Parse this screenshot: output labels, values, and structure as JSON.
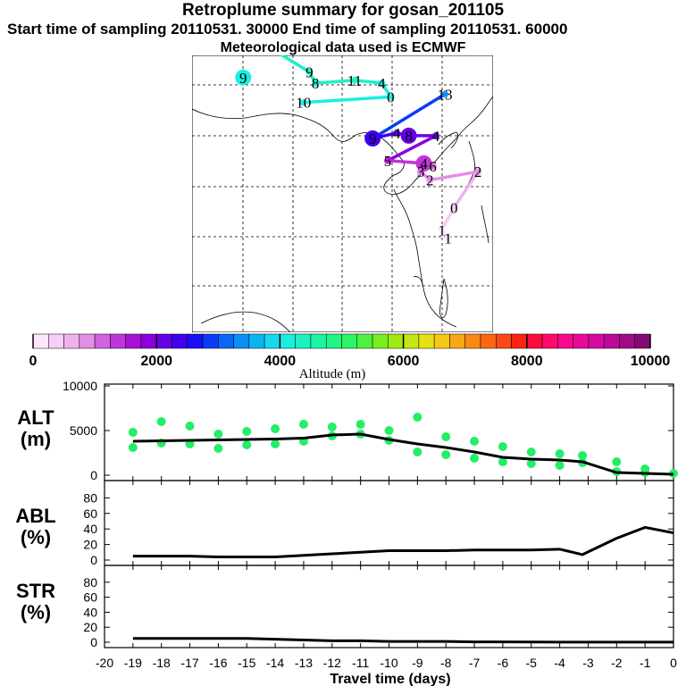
{
  "header": {
    "title": "Retroplume summary for gosan_201105",
    "subtitle": "Start time of sampling 20110531. 30000     End time of sampling 20110531. 60000",
    "met_note": "Meteorological data used is ECMWF"
  },
  "colorbar": {
    "tick_labels": [
      "0",
      "2000",
      "4000",
      "6000",
      "8000",
      "10000"
    ],
    "label": "Altitude (m)",
    "range": [
      0,
      10000
    ],
    "colors": [
      "#fde6fb",
      "#f8cdf6",
      "#f0b0ee",
      "#e38ee6",
      "#d163dd",
      "#bf36d8",
      "#a811d6",
      "#8b00dd",
      "#6600e6",
      "#4000ef",
      "#1a10f4",
      "#0a3cf7",
      "#0a66f6",
      "#0a8ff4",
      "#0ab4f2",
      "#14d8ef",
      "#1aeee1",
      "#1af2c4",
      "#1af4a4",
      "#20f585",
      "#2cf466",
      "#4cf240",
      "#78ee1e",
      "#a0ea14",
      "#c6e614",
      "#e6e014",
      "#f5c814",
      "#f8a814",
      "#f98814",
      "#fa6814",
      "#fb4814",
      "#fc2410",
      "#ff0a3c",
      "#ff0a6e",
      "#f70a8c",
      "#e90a98",
      "#d40aa0",
      "#bb0a98",
      "#a00a88",
      "#820a76"
    ]
  },
  "map_labels": [
    {
      "text": "9",
      "alt": 4100,
      "lon_frac": 0.17,
      "lat_frac": 0.08,
      "big": true
    },
    {
      "text": "9",
      "alt": 4300,
      "lon_frac": 0.39,
      "lat_frac": 0.06
    },
    {
      "text": "8",
      "alt": 4300,
      "lon_frac": 0.41,
      "lat_frac": 0.1
    },
    {
      "text": "11",
      "alt": 4400,
      "lon_frac": 0.54,
      "lat_frac": 0.09
    },
    {
      "text": "4",
      "alt": 4200,
      "lon_frac": 0.63,
      "lat_frac": 0.1
    },
    {
      "text": "0",
      "alt": 4200,
      "lon_frac": 0.66,
      "lat_frac": 0.15
    },
    {
      "text": "10",
      "alt": 4000,
      "lon_frac": 0.37,
      "lat_frac": 0.17
    },
    {
      "text": "13",
      "alt": 3300,
      "lon_frac": 0.84,
      "lat_frac": 0.14
    },
    {
      "text": "9",
      "alt": 2400,
      "lon_frac": 0.6,
      "lat_frac": 0.3,
      "big": true
    },
    {
      "text": "4",
      "alt": 2200,
      "lon_frac": 0.68,
      "lat_frac": 0.28
    },
    {
      "text": "8",
      "alt": 2200,
      "lon_frac": 0.72,
      "lat_frac": 0.29,
      "big": true
    },
    {
      "text": "4",
      "alt": 2000,
      "lon_frac": 0.81,
      "lat_frac": 0.29
    },
    {
      "text": "5",
      "alt": 1500,
      "lon_frac": 0.65,
      "lat_frac": 0.38
    },
    {
      "text": "4",
      "alt": 1300,
      "lon_frac": 0.77,
      "lat_frac": 0.39,
      "big": true
    },
    {
      "text": "6",
      "alt": 1200,
      "lon_frac": 0.8,
      "lat_frac": 0.4
    },
    {
      "text": "3",
      "alt": 1000,
      "lon_frac": 0.76,
      "lat_frac": 0.42
    },
    {
      "text": "2",
      "alt": 900,
      "lon_frac": 0.79,
      "lat_frac": 0.45
    },
    {
      "text": "2",
      "alt": 900,
      "lon_frac": 0.95,
      "lat_frac": 0.42
    },
    {
      "text": "0",
      "alt": 300,
      "lon_frac": 0.87,
      "lat_frac": 0.55
    },
    {
      "text": "1",
      "alt": 200,
      "lon_frac": 0.83,
      "lat_frac": 0.63
    },
    {
      "text": "1",
      "alt": 200,
      "lon_frac": 0.85,
      "lat_frac": 0.66
    }
  ],
  "panels": {
    "alt": {
      "label_line1": "ALT",
      "label_line2": "(m)",
      "ymin": 0,
      "ymax": 10000,
      "y_ticks": [
        "10000",
        "5000",
        "0"
      ]
    },
    "abl": {
      "label_line1": "ABL",
      "label_line2": "(%)",
      "ymin": 0,
      "ymax": 100,
      "y_ticks": [
        "80",
        "60",
        "40",
        "20",
        "0"
      ]
    },
    "str": {
      "label_line1": "STR",
      "label_line2": "(%)",
      "ymin": 0,
      "ymax": 100,
      "y_ticks": [
        "80",
        "60",
        "40",
        "20",
        "0"
      ]
    }
  },
  "x_axis": {
    "label": "Travel time (days)",
    "range": [
      -20,
      0
    ],
    "tick_labels": [
      "-20",
      "-19",
      "-18",
      "-17",
      "-16",
      "-15",
      "-14",
      "-13",
      "-12",
      "-11",
      "-10",
      "-9",
      "-8",
      "-7",
      "-6",
      "-5",
      "-4",
      "-3",
      "-2",
      "-1",
      "0"
    ]
  },
  "chart_data": {
    "type": "line",
    "title": "Retroplume summary for gosan_201105",
    "xlabel": "Travel time (days)",
    "x": [
      -19,
      -18,
      -17,
      -16,
      -15,
      -14,
      -13,
      -12,
      -11,
      -10,
      -9,
      -8,
      -7,
      -6,
      -5,
      -4,
      -3.2,
      -2,
      -1,
      0
    ],
    "series": [
      {
        "name": "ALT (m)",
        "ylim": [
          0,
          10000
        ],
        "values": [
          3800,
          3850,
          3900,
          3950,
          4000,
          4050,
          4150,
          4500,
          4600,
          4000,
          3500,
          3100,
          2600,
          2000,
          1800,
          1700,
          1500,
          300,
          200,
          100
        ]
      },
      {
        "name": "ABL (%)",
        "ylim": [
          0,
          100
        ],
        "values": [
          5,
          5,
          5,
          4,
          4,
          4,
          6,
          8,
          10,
          12,
          12,
          12,
          13,
          13,
          13,
          14,
          7,
          28,
          42,
          35
        ]
      },
      {
        "name": "STR (%)",
        "ylim": [
          0,
          100
        ],
        "values": [
          5,
          5,
          5,
          5,
          5,
          4,
          3,
          2,
          2,
          1,
          1,
          1,
          0.5,
          0.5,
          0.3,
          0.2,
          0.2,
          0.1,
          0.1,
          0.1
        ]
      }
    ],
    "alt_scatter": [
      {
        "x": -19,
        "y": 3100
      },
      {
        "x": -19,
        "y": 4800
      },
      {
        "x": -18,
        "y": 3600
      },
      {
        "x": -18,
        "y": 6000
      },
      {
        "x": -17,
        "y": 3500
      },
      {
        "x": -17,
        "y": 5500
      },
      {
        "x": -16,
        "y": 3000
      },
      {
        "x": -16,
        "y": 4600
      },
      {
        "x": -15,
        "y": 3400
      },
      {
        "x": -15,
        "y": 4900
      },
      {
        "x": -14,
        "y": 3500
      },
      {
        "x": -14,
        "y": 5200
      },
      {
        "x": -13,
        "y": 3800
      },
      {
        "x": -13,
        "y": 5700
      },
      {
        "x": -12,
        "y": 4400
      },
      {
        "x": -12,
        "y": 5400
      },
      {
        "x": -11,
        "y": 4600
      },
      {
        "x": -11,
        "y": 5700
      },
      {
        "x": -10,
        "y": 3900
      },
      {
        "x": -10,
        "y": 5000
      },
      {
        "x": -9,
        "y": 2600
      },
      {
        "x": -9,
        "y": 6500
      },
      {
        "x": -8,
        "y": 2300
      },
      {
        "x": -8,
        "y": 4300
      },
      {
        "x": -7,
        "y": 1900
      },
      {
        "x": -7,
        "y": 3800
      },
      {
        "x": -6,
        "y": 1500
      },
      {
        "x": -6,
        "y": 3200
      },
      {
        "x": -5,
        "y": 1300
      },
      {
        "x": -5,
        "y": 2600
      },
      {
        "x": -4,
        "y": 1100
      },
      {
        "x": -4,
        "y": 2400
      },
      {
        "x": -3.2,
        "y": 1400
      },
      {
        "x": -3.2,
        "y": 2200
      },
      {
        "x": -2,
        "y": 400
      },
      {
        "x": -2,
        "y": 1500
      },
      {
        "x": -1,
        "y": 300
      },
      {
        "x": -1,
        "y": 700
      },
      {
        "x": 0,
        "y": 200
      }
    ]
  }
}
